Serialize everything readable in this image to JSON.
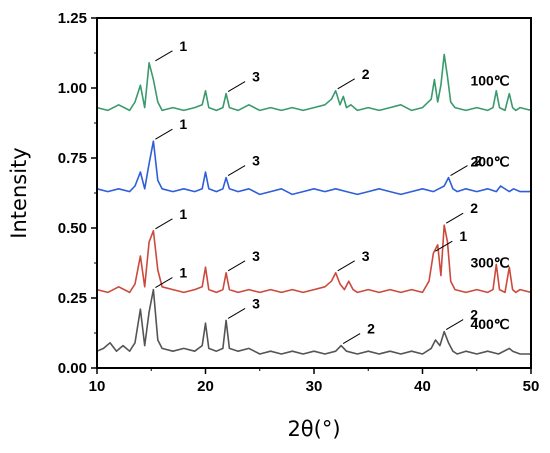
{
  "chart_data": {
    "type": "line",
    "xlabel": "2θ(°)",
    "ylabel": "Intensity",
    "xlim": [
      10,
      50
    ],
    "ylim": [
      0,
      1.25
    ],
    "xticks": [
      10,
      20,
      30,
      40,
      50
    ],
    "xtick_labels": [
      "10",
      "20",
      "30",
      "40",
      "50"
    ],
    "yticks": [
      0,
      0.25,
      0.5,
      0.75,
      1.0,
      1.25
    ],
    "ytick_labels": [
      "0.00",
      "0.25",
      "0.50",
      "0.75",
      "1.00",
      "1.25"
    ],
    "grid": false,
    "legend": "none",
    "series": [
      {
        "name": "100℃",
        "color": "#3a9a6c",
        "baseline": 0.92,
        "x": [
          10,
          11,
          12,
          13,
          13.5,
          14.0,
          14.4,
          14.8,
          15.2,
          15.6,
          16.0,
          17,
          18,
          19,
          19.7,
          20.0,
          20.3,
          21,
          21.6,
          21.9,
          22.2,
          23,
          24,
          25,
          26,
          27,
          28,
          29,
          30,
          31,
          31.6,
          32.0,
          32.4,
          32.7,
          33.0,
          33.4,
          34,
          35,
          36,
          37,
          38,
          39,
          40,
          40.8,
          41.1,
          41.4,
          41.7,
          42.0,
          42.3,
          42.6,
          43.0,
          44,
          45,
          46,
          46.5,
          46.8,
          47.1,
          47.6,
          48.0,
          48.3,
          48.6,
          49,
          50
        ],
        "y": [
          0.93,
          0.92,
          0.94,
          0.92,
          0.95,
          1.01,
          0.93,
          1.09,
          1.03,
          0.95,
          0.92,
          0.93,
          0.92,
          0.93,
          0.94,
          0.99,
          0.93,
          0.92,
          0.93,
          0.98,
          0.93,
          0.92,
          0.94,
          0.92,
          0.93,
          0.92,
          0.93,
          0.92,
          0.93,
          0.94,
          0.96,
          0.99,
          0.94,
          0.97,
          0.93,
          0.94,
          0.92,
          0.93,
          0.92,
          0.93,
          0.94,
          0.92,
          0.93,
          0.96,
          1.03,
          0.95,
          1.01,
          1.12,
          1.04,
          0.95,
          0.93,
          0.92,
          0.93,
          0.92,
          0.93,
          0.99,
          0.93,
          0.92,
          0.98,
          0.93,
          0.92,
          0.93,
          0.92
        ]
      },
      {
        "name": "200℃",
        "color": "#2f5fd8",
        "baseline": 0.63,
        "x": [
          10,
          11,
          12,
          13,
          13.5,
          14.0,
          14.4,
          14.8,
          15.2,
          15.6,
          16.0,
          17,
          18,
          19,
          19.7,
          20.0,
          20.3,
          21,
          21.6,
          21.9,
          22.2,
          23,
          24,
          25,
          26,
          27,
          28,
          29,
          30,
          31,
          32,
          33,
          34,
          35,
          36,
          37,
          38,
          39,
          40,
          41,
          41.5,
          42.0,
          42.4,
          42.8,
          43.2,
          44,
          45,
          46,
          46.8,
          47.2,
          48,
          48.4,
          49,
          50
        ],
        "y": [
          0.64,
          0.63,
          0.64,
          0.63,
          0.65,
          0.7,
          0.64,
          0.73,
          0.81,
          0.67,
          0.64,
          0.63,
          0.64,
          0.63,
          0.64,
          0.7,
          0.64,
          0.63,
          0.64,
          0.68,
          0.64,
          0.63,
          0.64,
          0.62,
          0.63,
          0.64,
          0.62,
          0.63,
          0.64,
          0.63,
          0.64,
          0.63,
          0.62,
          0.63,
          0.64,
          0.63,
          0.62,
          0.63,
          0.64,
          0.63,
          0.64,
          0.65,
          0.68,
          0.64,
          0.63,
          0.64,
          0.63,
          0.64,
          0.63,
          0.65,
          0.63,
          0.64,
          0.63,
          0.63
        ]
      },
      {
        "name": "300℃",
        "color": "#cc4a3c",
        "baseline": 0.27,
        "x": [
          10,
          11,
          12,
          13,
          13.5,
          14.0,
          14.4,
          14.8,
          15.2,
          15.6,
          16.0,
          17,
          18,
          19,
          19.7,
          20.0,
          20.3,
          21,
          21.6,
          21.9,
          22.2,
          23,
          24,
          25,
          26,
          27,
          28,
          29,
          30,
          31,
          31.6,
          32.0,
          32.4,
          32.8,
          33.2,
          33.6,
          34,
          35,
          36,
          37,
          38,
          39,
          40,
          40.6,
          41.0,
          41.4,
          41.7,
          42.0,
          42.3,
          42.6,
          43.0,
          44,
          45,
          46,
          46.5,
          46.8,
          47.1,
          47.6,
          48.0,
          48.3,
          48.6,
          49,
          50
        ],
        "y": [
          0.28,
          0.27,
          0.29,
          0.27,
          0.3,
          0.4,
          0.29,
          0.45,
          0.49,
          0.35,
          0.29,
          0.28,
          0.27,
          0.28,
          0.29,
          0.36,
          0.28,
          0.27,
          0.28,
          0.34,
          0.28,
          0.27,
          0.28,
          0.27,
          0.28,
          0.27,
          0.28,
          0.27,
          0.28,
          0.29,
          0.31,
          0.34,
          0.3,
          0.28,
          0.31,
          0.28,
          0.27,
          0.28,
          0.27,
          0.28,
          0.27,
          0.28,
          0.27,
          0.31,
          0.41,
          0.44,
          0.33,
          0.51,
          0.45,
          0.31,
          0.28,
          0.27,
          0.28,
          0.27,
          0.28,
          0.37,
          0.28,
          0.27,
          0.36,
          0.28,
          0.27,
          0.28,
          0.27
        ]
      },
      {
        "name": "400℃",
        "color": "#555555",
        "baseline": 0.05,
        "x": [
          10,
          10.6,
          11.2,
          11.8,
          12.4,
          13.0,
          13.5,
          14.0,
          14.4,
          14.8,
          15.2,
          15.6,
          16.0,
          17,
          18,
          19,
          19.7,
          20.0,
          20.3,
          21,
          21.6,
          21.9,
          22.2,
          23,
          24,
          25,
          26,
          27,
          28,
          29,
          30,
          31,
          32,
          32.5,
          33.0,
          34,
          35,
          36,
          37,
          38,
          39,
          40,
          40.8,
          41.2,
          41.6,
          42.0,
          42.4,
          42.8,
          43.2,
          44,
          45,
          46,
          47,
          48.0,
          48.3,
          49,
          50
        ],
        "y": [
          0.06,
          0.07,
          0.09,
          0.06,
          0.08,
          0.06,
          0.09,
          0.21,
          0.08,
          0.2,
          0.28,
          0.1,
          0.07,
          0.06,
          0.07,
          0.06,
          0.08,
          0.16,
          0.07,
          0.06,
          0.07,
          0.17,
          0.07,
          0.06,
          0.07,
          0.05,
          0.06,
          0.05,
          0.06,
          0.05,
          0.06,
          0.05,
          0.06,
          0.08,
          0.06,
          0.05,
          0.06,
          0.05,
          0.06,
          0.05,
          0.06,
          0.05,
          0.07,
          0.1,
          0.08,
          0.13,
          0.09,
          0.06,
          0.05,
          0.06,
          0.05,
          0.06,
          0.05,
          0.07,
          0.06,
          0.05,
          0.05
        ]
      }
    ],
    "annotations": [
      {
        "text": "1",
        "x": 15.2,
        "y": 1.09
      },
      {
        "text": "3",
        "x": 21.9,
        "y": 0.98
      },
      {
        "text": "2",
        "x": 32.0,
        "y": 0.99
      },
      {
        "text": "1",
        "x": 15.2,
        "y": 0.81
      },
      {
        "text": "3",
        "x": 21.9,
        "y": 0.68
      },
      {
        "text": "2",
        "x": 42.4,
        "y": 0.68
      },
      {
        "text": "1",
        "x": 15.2,
        "y": 0.49
      },
      {
        "text": "3",
        "x": 21.9,
        "y": 0.34
      },
      {
        "text": "3",
        "x": 32.0,
        "y": 0.34
      },
      {
        "text": "1",
        "x": 41.0,
        "y": 0.41
      },
      {
        "text": "2",
        "x": 42.0,
        "y": 0.51
      },
      {
        "text": "1",
        "x": 15.2,
        "y": 0.28
      },
      {
        "text": "3",
        "x": 21.9,
        "y": 0.17
      },
      {
        "text": "2",
        "x": 32.5,
        "y": 0.08
      },
      {
        "text": "2",
        "x": 42.0,
        "y": 0.13
      }
    ]
  }
}
